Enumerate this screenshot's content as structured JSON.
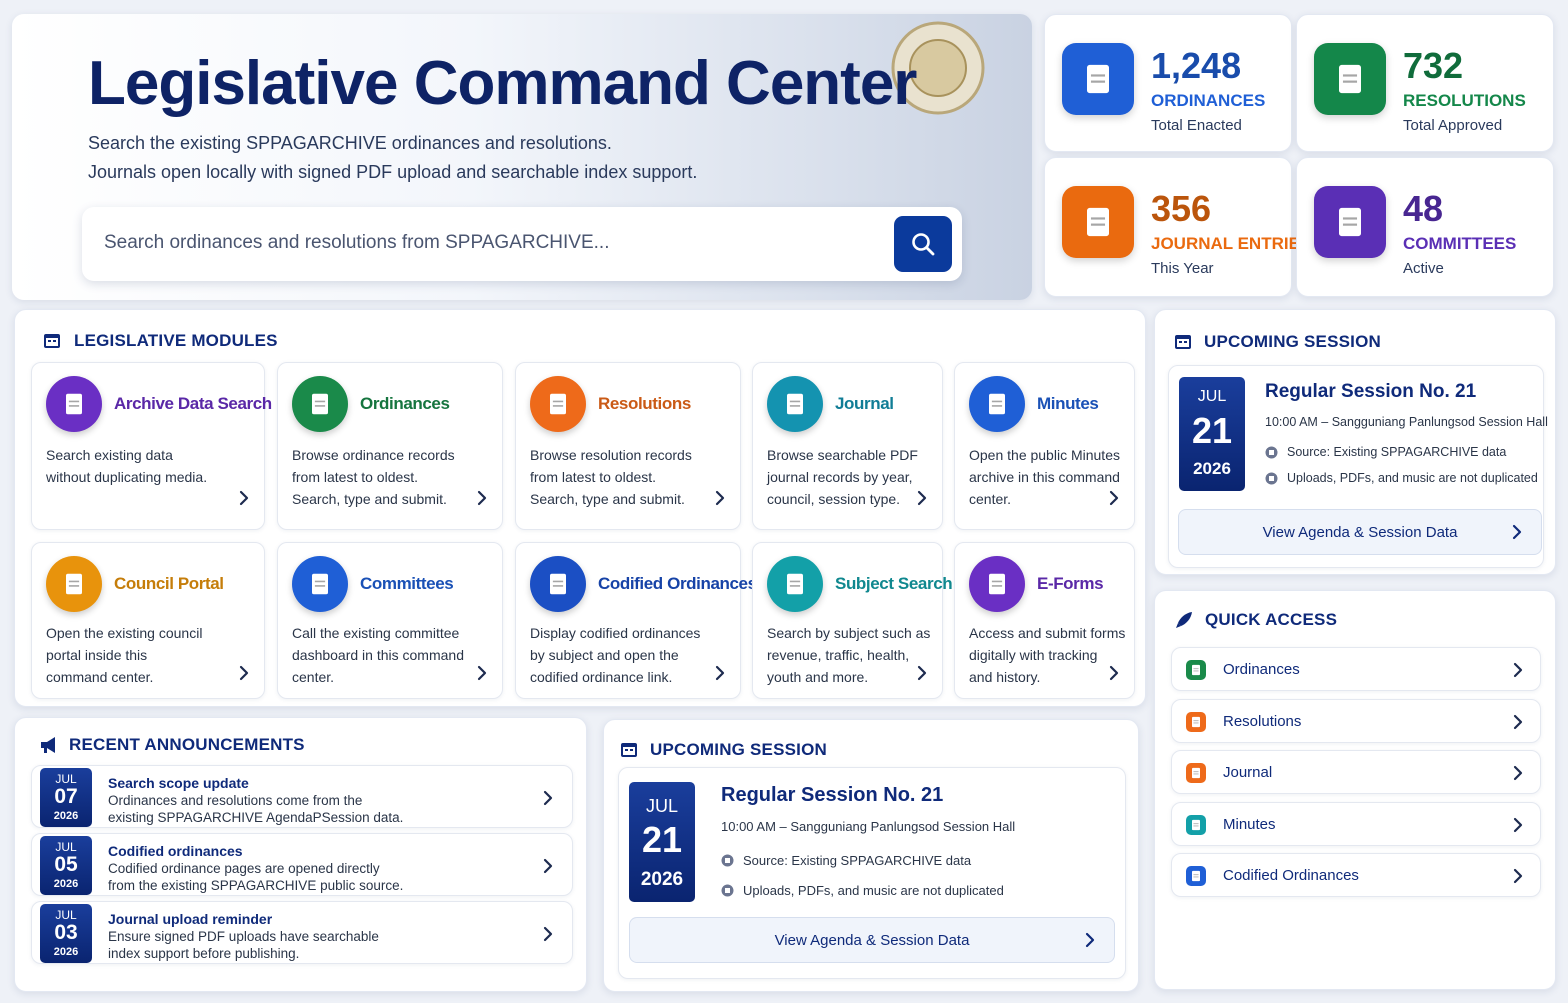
{
  "hero": {
    "title": "Legislative Command Center",
    "description": [
      "Search the existing SPPAGARCHIVE ordinances and resolutions.",
      "Journals open locally with signed PDF upload and searchable index support."
    ],
    "search_placeholder": "Search ordinances and resolutions from SPPAGARCHIVE..."
  },
  "stats": [
    {
      "value": "1,248",
      "label": "ORDINANCES",
      "caption": "Total Enacted",
      "color": "#1f5fd6"
    },
    {
      "value": "732",
      "label": "RESOLUTIONS",
      "caption": "Total Approved",
      "color": "#14874a"
    },
    {
      "value": "356",
      "label": "JOURNAL ENTRIES",
      "caption": "This Year",
      "color": "#ea6a0f"
    },
    {
      "value": "48",
      "label": "COMMITTEES",
      "caption": "Active",
      "color": "#5a2fb5"
    }
  ],
  "modules": {
    "heading": "LEGISLATIVE MODULES",
    "items": [
      {
        "title": "Archive Data Search",
        "lines": [
          "Search existing data",
          "without duplicating media."
        ],
        "color": "#6a2fc4"
      },
      {
        "title": "Ordinances",
        "lines": [
          "Browse ordinance records",
          "from latest to oldest.",
          "Search, type and submit."
        ],
        "color": "#1a8a4a"
      },
      {
        "title": "Resolutions",
        "lines": [
          "Browse resolution records",
          "from latest to oldest.",
          "Search, type and submit."
        ],
        "color": "#ee6a1a"
      },
      {
        "title": "Journal",
        "lines": [
          "Browse searchable PDF",
          "journal records by year,",
          "council, session type."
        ],
        "color": "#1493b0"
      },
      {
        "title": "Minutes",
        "lines": [
          "Open the public Minutes",
          "archive in this command",
          "center."
        ],
        "color": "#1f5fd6"
      },
      {
        "title": "Council Portal",
        "lines": [
          "Open the existing council",
          "portal inside this",
          "command center."
        ],
        "color": "#e8930c"
      },
      {
        "title": "Committees",
        "lines": [
          "Call the existing committee",
          "dashboard in this command",
          "center."
        ],
        "color": "#1f5fd6"
      },
      {
        "title": "Codified Ordinances",
        "lines": [
          "Display codified ordinances",
          "by subject and open the",
          "codified ordinance link."
        ],
        "color": "#1b4fc4"
      },
      {
        "title": "Subject Search",
        "lines": [
          "Search by subject such as",
          "revenue, traffic, health,",
          "youth and more."
        ],
        "color": "#13a0a8"
      },
      {
        "title": "E-Forms",
        "lines": [
          "Access and submit forms",
          "digitally with tracking",
          "and history."
        ],
        "color": "#6a2fc4"
      }
    ]
  },
  "announcements": {
    "heading": "RECENT ANNOUNCEMENTS",
    "items": [
      {
        "month": "JUL",
        "day": "07",
        "year": "2026",
        "title": "Search scope update",
        "lines": [
          "Ordinances and resolutions come from the",
          "existing SPPAGARCHIVE AgendaPSession data."
        ]
      },
      {
        "month": "JUL",
        "day": "05",
        "year": "2026",
        "title": "Codified ordinances",
        "lines": [
          "Codified ordinance pages are opened directly",
          "from the existing SPPAGARCHIVE public source."
        ]
      },
      {
        "month": "JUL",
        "day": "03",
        "year": "2026",
        "title": "Journal upload reminder",
        "lines": [
          "Ensure signed PDF uploads have searchable",
          "index support before publishing."
        ]
      }
    ]
  },
  "sessions": [
    {
      "heading": "UPCOMING SESSION",
      "month": "JUL",
      "day": "21",
      "year": "2026",
      "title": "Regular Session No. 21",
      "time": "10:00 AM – Sangguniang Panlungsod Session Hall",
      "source": "Source: Existing SPPAGARCHIVE data",
      "note": "Uploads, PDFs, and music are not duplicated",
      "button": "View Agenda & Session Data"
    },
    {
      "heading": "UPCOMING SESSION",
      "month": "JUL",
      "day": "21",
      "year": "2026",
      "title": "Regular Session No. 21",
      "time": "10:00 AM – Sangguniang Panlungsod Session Hall",
      "source": "Source: Existing SPPAGARCHIVE data",
      "note": "Uploads, PDFs, and music are not duplicated",
      "button": "View Agenda & Session Data"
    }
  ],
  "quick_access": {
    "heading": "QUICK ACCESS",
    "items": [
      {
        "label": "Ordinances",
        "color": "#1a8a4a"
      },
      {
        "label": "Resolutions",
        "color": "#ee6a1a"
      },
      {
        "label": "Journal",
        "color": "#ee6a1a"
      },
      {
        "label": "Minutes",
        "color": "#13a0a8"
      },
      {
        "label": "Codified Ordinances",
        "color": "#1f5fd6"
      }
    ]
  }
}
